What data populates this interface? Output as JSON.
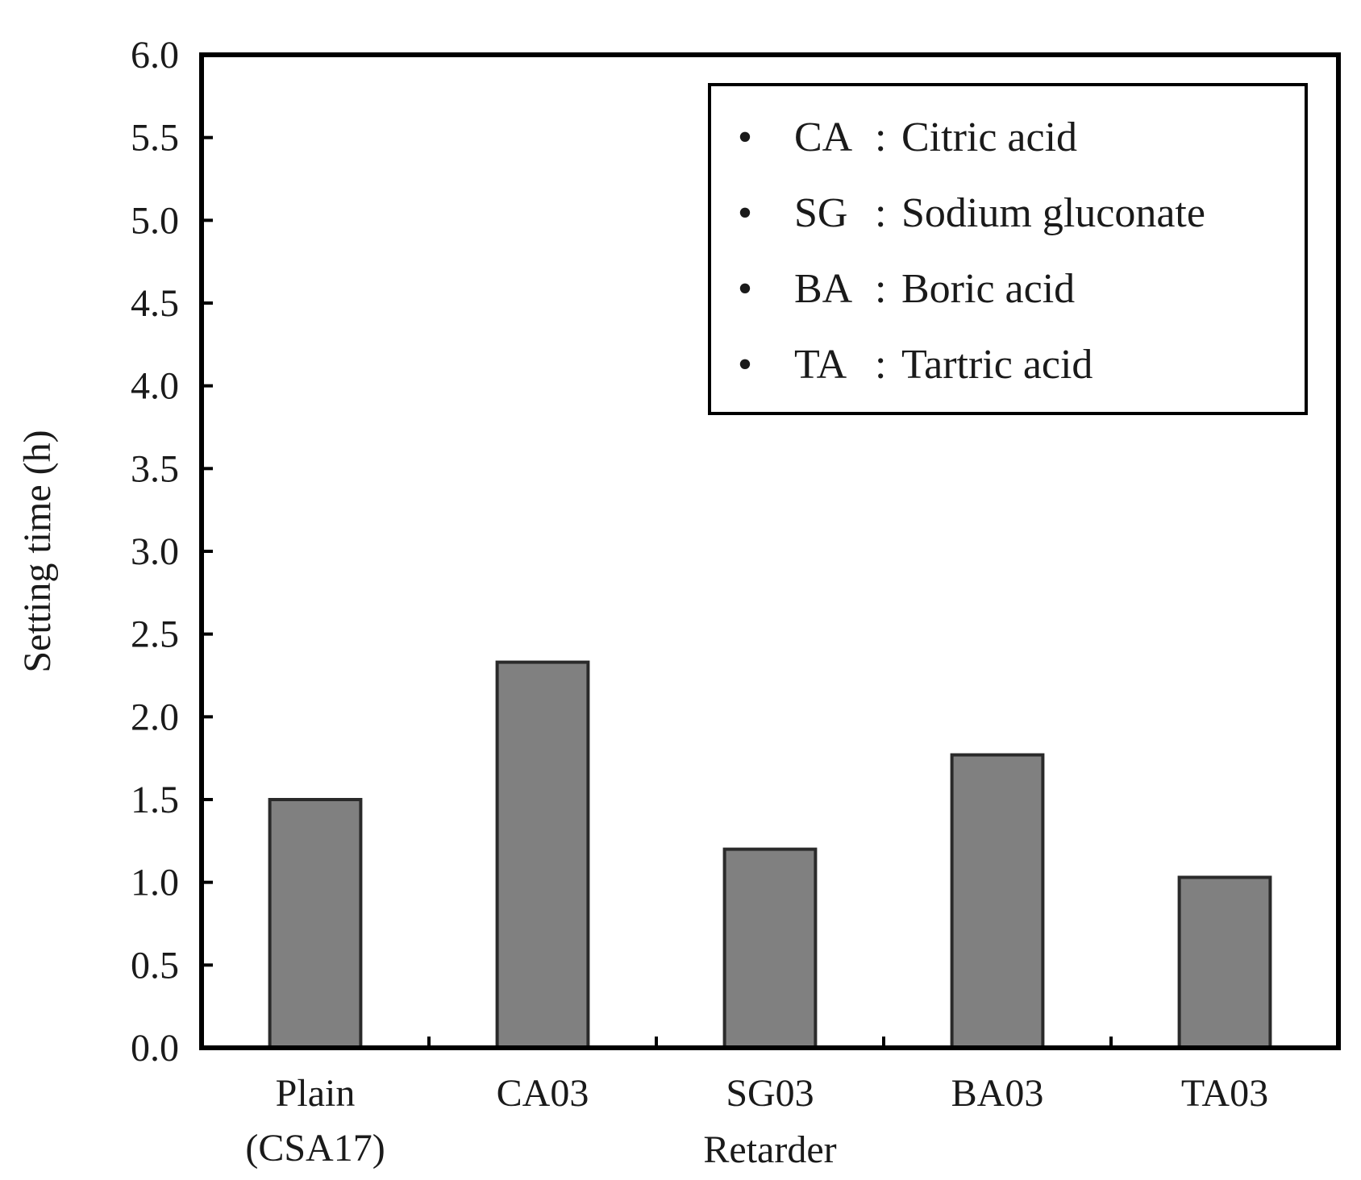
{
  "chart_data": {
    "type": "bar",
    "title": "",
    "xlabel": "Retarder",
    "ylabel": "Setting time (h)",
    "ylim": [
      0,
      6.0
    ],
    "ytick_step": 0.5,
    "yticks": [
      "0.0",
      "0.5",
      "1.0",
      "1.5",
      "2.0",
      "2.5",
      "3.0",
      "3.5",
      "4.0",
      "4.5",
      "5.0",
      "5.5",
      "6.0"
    ],
    "categories": [
      {
        "line1": "Plain",
        "line2": "(CSA17)"
      },
      {
        "line1": "CA03",
        "line2": ""
      },
      {
        "line1": "SG03",
        "line2": ""
      },
      {
        "line1": "BA03",
        "line2": ""
      },
      {
        "line1": "TA03",
        "line2": ""
      }
    ],
    "values": [
      1.5,
      2.33,
      1.2,
      1.77,
      1.03
    ],
    "grid": false,
    "legend_position": "top-right",
    "legend": [
      {
        "bullet": "•",
        "abbr": "CA",
        "sep": ":",
        "name": "Citric acid"
      },
      {
        "bullet": "•",
        "abbr": "SG",
        "sep": ":",
        "name": "Sodium gluconate"
      },
      {
        "bullet": "•",
        "abbr": "BA",
        "sep": ":",
        "name": "Boric acid"
      },
      {
        "bullet": "•",
        "abbr": "TA",
        "sep": ":",
        "name": "Tartric acid"
      }
    ],
    "colors": {
      "bar_fill": "#808080",
      "bar_stroke": "#2a2a2a",
      "axis": "#000000"
    }
  }
}
